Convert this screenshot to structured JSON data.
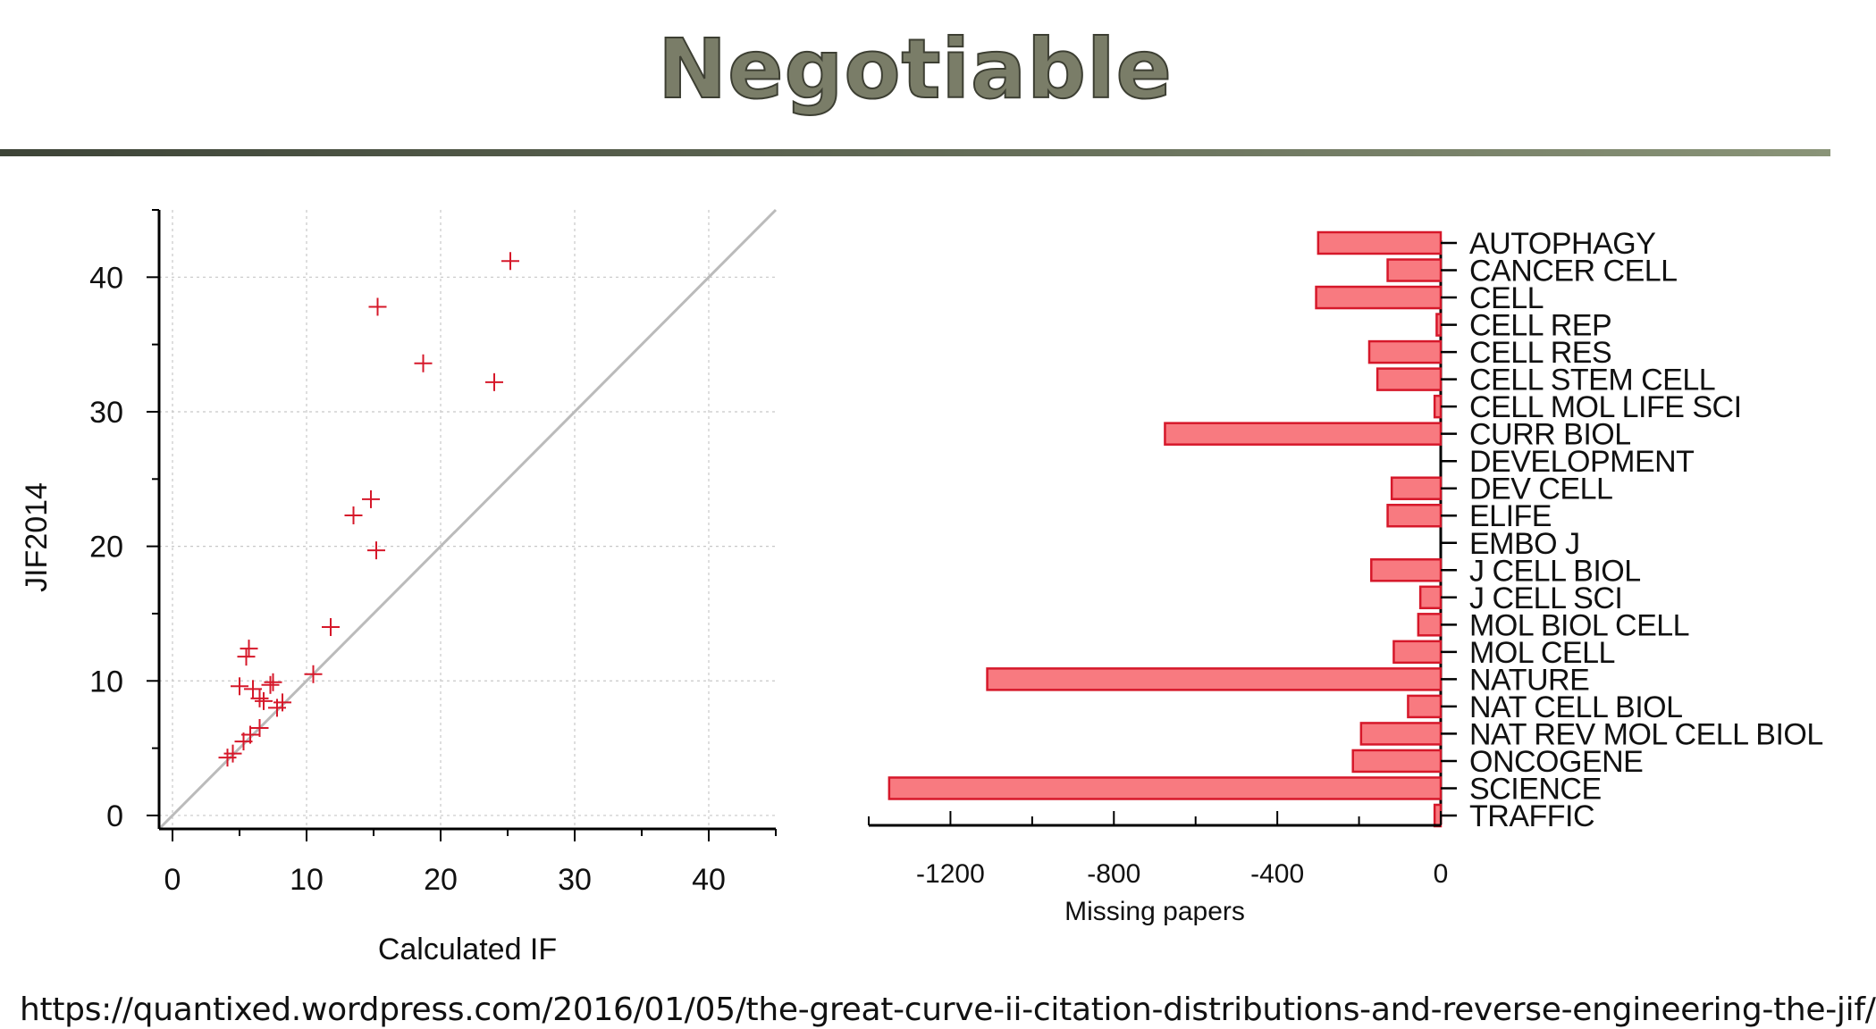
{
  "slide": {
    "title": "Negotiable",
    "source_url": "https://quantixed.wordpress.com/2016/01/05/the-great-curve-ii-citation-distributions-and-reverse-engineering-the-jif/"
  },
  "colors": {
    "marker": "#d6182a",
    "bar_fill": "#f87a80",
    "bar_stroke": "#d6182a",
    "diagonal": "#bbbbbb",
    "grid": "#c8c8c8",
    "title_fill": "#7a7d68",
    "title_rule": "#4e5645"
  },
  "chart_data": [
    {
      "type": "scatter",
      "xlabel": "Calculated IF",
      "ylabel": "JIF2014",
      "xlim": [
        -1,
        45
      ],
      "ylim": [
        -1,
        45
      ],
      "xticks": [
        0,
        10,
        20,
        30,
        40
      ],
      "yticks": [
        0,
        10,
        20,
        30,
        40
      ],
      "grid": true,
      "reference_line": "y = x",
      "marker": "+",
      "points": [
        {
          "x": 25.2,
          "y": 41.2
        },
        {
          "x": 15.3,
          "y": 37.8
        },
        {
          "x": 18.7,
          "y": 33.6
        },
        {
          "x": 24.0,
          "y": 32.2
        },
        {
          "x": 14.8,
          "y": 23.5
        },
        {
          "x": 13.5,
          "y": 22.3
        },
        {
          "x": 15.2,
          "y": 19.7
        },
        {
          "x": 11.8,
          "y": 14.0
        },
        {
          "x": 5.7,
          "y": 12.4
        },
        {
          "x": 5.5,
          "y": 11.8
        },
        {
          "x": 10.5,
          "y": 10.5
        },
        {
          "x": 7.5,
          "y": 9.9
        },
        {
          "x": 7.3,
          "y": 9.7
        },
        {
          "x": 5.0,
          "y": 9.6
        },
        {
          "x": 6.0,
          "y": 9.4
        },
        {
          "x": 6.5,
          "y": 8.7
        },
        {
          "x": 6.8,
          "y": 8.5
        },
        {
          "x": 8.2,
          "y": 8.4
        },
        {
          "x": 7.8,
          "y": 8.0
        },
        {
          "x": 6.5,
          "y": 6.5
        },
        {
          "x": 5.8,
          "y": 6.0
        },
        {
          "x": 5.3,
          "y": 5.5
        },
        {
          "x": 4.1,
          "y": 4.3
        },
        {
          "x": 4.5,
          "y": 4.6
        }
      ]
    },
    {
      "type": "bar",
      "orientation": "horizontal",
      "xlabel": "Missing papers",
      "xlim": [
        -1400,
        0
      ],
      "xticks": [
        -1200,
        -800,
        -400,
        0
      ],
      "categories": [
        "AUTOPHAGY",
        "CANCER CELL",
        "CELL",
        "CELL REP",
        "CELL RES",
        "CELL STEM CELL",
        "CELL MOL LIFE SCI",
        "CURR BIOL",
        "DEVELOPMENT",
        "DEV CELL",
        "ELIFE",
        "EMBO J",
        "J CELL BIOL",
        "J CELL SCI",
        "MOL BIOL CELL",
        "MOL CELL",
        "NATURE",
        "NAT CELL BIOL",
        "NAT REV MOL CELL BIOL",
        "ONCOGENE",
        "SCIENCE",
        "TRAFFIC"
      ],
      "values": [
        -300,
        -130,
        -305,
        -10,
        -175,
        -155,
        -15,
        -675,
        0,
        -120,
        -130,
        0,
        -170,
        -50,
        -55,
        -115,
        -1110,
        -80,
        -195,
        -215,
        -1350,
        -15
      ]
    }
  ]
}
